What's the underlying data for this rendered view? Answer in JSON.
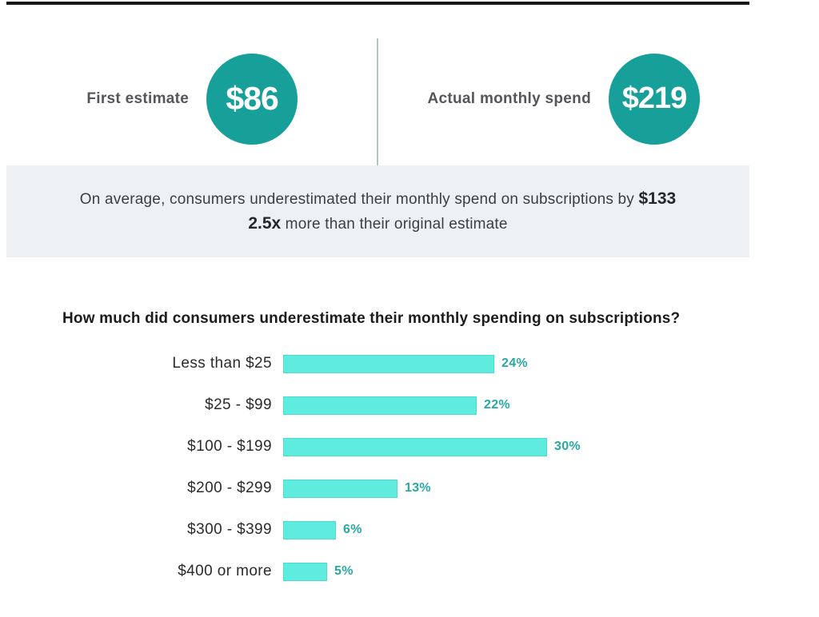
{
  "header": {
    "first_estimate": {
      "label": "First estimate",
      "value": "$86"
    },
    "actual_spend": {
      "label": "Actual monthly spend",
      "value": "$219"
    }
  },
  "banner": {
    "line1": {
      "text": "On average, consumers underestimated their monthly spend on subscriptions by",
      "emphasis": "$133"
    },
    "line2": {
      "emphasis": "2.5x",
      "text": "more than their original estimate"
    }
  },
  "chart_data": {
    "type": "bar",
    "orientation": "horizontal",
    "title": "How much did consumers underestimate their monthly spending on subscriptions?",
    "categories": [
      "Less than $25",
      "$25 - $99",
      "$100 - $199",
      "$200 - $299",
      "$300 - $399",
      "$400 or more"
    ],
    "values": [
      24,
      22,
      30,
      13,
      6,
      5
    ],
    "value_suffix": "%",
    "xlim": [
      0,
      33
    ],
    "grid": false,
    "legend": "none"
  },
  "colors": {
    "circle_teal": "#17a099",
    "bar_fill": "#5fecdf",
    "bar_border": "#47ddcf",
    "value_label_teal": "#2aa8a0",
    "banner_bg": "#eef1f3",
    "top_rule": "#171717"
  }
}
